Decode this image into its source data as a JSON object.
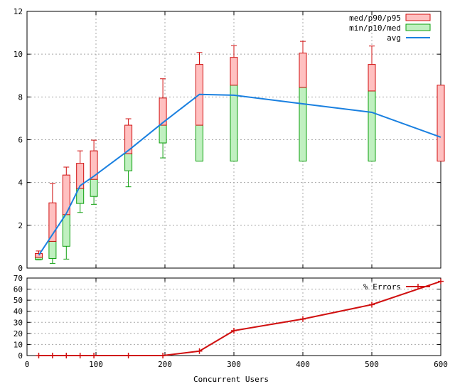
{
  "chart_data": [
    {
      "type": "box",
      "xlim": [
        0,
        600
      ],
      "ylim": [
        0,
        12
      ],
      "x_ticks": [
        0,
        100,
        200,
        300,
        400,
        500,
        600
      ],
      "y_ticks": [
        0,
        2,
        4,
        6,
        8,
        10,
        12
      ],
      "x_tick_labels": [
        "",
        "",
        "",
        "",
        "",
        "",
        ""
      ],
      "y_tick_labels": [
        "0",
        "2",
        "4",
        "6",
        "8",
        "10",
        "12"
      ],
      "grid": true,
      "legend_position": "top-right",
      "legend": [
        {
          "label": "med/p90/p95",
          "style": "red-box"
        },
        {
          "label": "min/p10/med",
          "style": "green-box"
        },
        {
          "label": "avg",
          "style": "blue-line"
        }
      ],
      "colors": {
        "upper_box_fill": "#ffc0c0",
        "upper_box_stroke": "#d01010",
        "lower_box_fill": "#c0f0c0",
        "lower_box_stroke": "#10a010",
        "avg": "#1a80e0",
        "grid": "#a8a8a8"
      },
      "box_width": 10,
      "boxes": [
        {
          "x": 17,
          "min": 0.38,
          "p10": 0.4,
          "med": 0.5,
          "p90": 0.68,
          "p95": 0.8
        },
        {
          "x": 37,
          "min": 0.22,
          "p10": 0.45,
          "med": 1.25,
          "p90": 3.05,
          "p95": 3.95
        },
        {
          "x": 57,
          "min": 0.42,
          "p10": 1.02,
          "med": 2.5,
          "p90": 4.35,
          "p95": 4.72
        },
        {
          "x": 77,
          "min": 2.6,
          "p10": 3.02,
          "med": 3.72,
          "p90": 4.9,
          "p95": 5.48
        },
        {
          "x": 97,
          "min": 2.98,
          "p10": 3.35,
          "med": 4.15,
          "p90": 5.48,
          "p95": 5.98
        },
        {
          "x": 147,
          "min": 3.8,
          "p10": 4.55,
          "med": 5.35,
          "p90": 6.68,
          "p95": 6.98
        },
        {
          "x": 197,
          "min": 5.15,
          "p10": 5.85,
          "med": 6.68,
          "p90": 7.95,
          "p95": 8.85
        },
        {
          "x": 250,
          "min": 5.0,
          "p10": 5.0,
          "med": 6.68,
          "p90": 9.52,
          "p95": 10.08
        },
        {
          "x": 300,
          "min": 5.0,
          "p10": 5.0,
          "med": 8.55,
          "p90": 9.85,
          "p95": 10.4
        },
        {
          "x": 400,
          "min": 5.0,
          "p10": 5.0,
          "med": 8.45,
          "p90": 10.05,
          "p95": 10.6
        },
        {
          "x": 500,
          "min": 5.0,
          "p10": 5.0,
          "med": 8.28,
          "p90": 9.52,
          "p95": 10.38
        },
        {
          "x": 600,
          "min": 5.0,
          "p10": 5.0,
          "med": 5.0,
          "p90": 8.55,
          "p95": 8.55
        }
      ],
      "avg_x": [
        17,
        57,
        77,
        97,
        147,
        197,
        250,
        300,
        400,
        500,
        600
      ],
      "avg_y": [
        0.6,
        2.55,
        3.85,
        4.3,
        5.5,
        6.8,
        8.12,
        8.08,
        7.68,
        7.28,
        6.12
      ]
    },
    {
      "type": "line",
      "xlim": [
        0,
        600
      ],
      "ylim": [
        0,
        70
      ],
      "x_ticks": [
        0,
        100,
        200,
        300,
        400,
        500,
        600
      ],
      "y_ticks": [
        0,
        10,
        20,
        30,
        40,
        50,
        60,
        70
      ],
      "x_tick_labels": [
        "0",
        "100",
        "200",
        "300",
        "400",
        "500",
        "600"
      ],
      "y_tick_labels": [
        "0",
        "10",
        "20",
        "30",
        "40",
        "50",
        "60",
        "70"
      ],
      "xlabel": "Concurrent Users",
      "grid": true,
      "legend_position": "top-right",
      "series": [
        {
          "name": "% Errors",
          "color": "#d01010",
          "x": [
            17,
            37,
            57,
            77,
            97,
            147,
            197,
            250,
            300,
            400,
            500,
            600
          ],
          "y": [
            0,
            0,
            0,
            0,
            0,
            0,
            0,
            4,
            22.5,
            33,
            46,
            67
          ]
        }
      ]
    }
  ]
}
